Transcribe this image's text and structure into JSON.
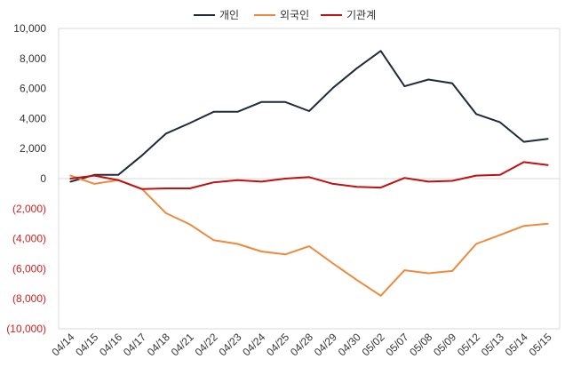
{
  "chart_data": {
    "type": "line",
    "title": "",
    "xlabel": "",
    "ylabel": "",
    "ylim": [
      -10000,
      10000
    ],
    "y_ticks": [
      {
        "value": 10000,
        "label": "10,000"
      },
      {
        "value": 8000,
        "label": "8,000"
      },
      {
        "value": 6000,
        "label": "6,000"
      },
      {
        "value": 4000,
        "label": "4,000"
      },
      {
        "value": 2000,
        "label": "2,000"
      },
      {
        "value": 0,
        "label": "0"
      },
      {
        "value": -2000,
        "label": "(2,000)"
      },
      {
        "value": -4000,
        "label": "(4,000)"
      },
      {
        "value": -6000,
        "label": "(6,000)"
      },
      {
        "value": -8000,
        "label": "(8,000)"
      },
      {
        "value": -10000,
        "label": "(10,000)"
      }
    ],
    "categories": [
      "04/14",
      "04/15",
      "04/16",
      "04/17",
      "04/18",
      "04/21",
      "04/22",
      "04/23",
      "04/24",
      "04/25",
      "04/28",
      "04/29",
      "04/30",
      "05/02",
      "05/07",
      "05/08",
      "05/09",
      "05/12",
      "05/13",
      "05/14",
      "05/15"
    ],
    "legend_position": "top-center",
    "series": [
      {
        "name": "개인",
        "color": "#1f2a3a",
        "values": [
          -200,
          250,
          250,
          1550,
          3000,
          3700,
          4450,
          4450,
          5100,
          5100,
          4500,
          6050,
          7350,
          8500,
          6150,
          6600,
          6350,
          4300,
          3750,
          2450,
          2650
        ]
      },
      {
        "name": "외국인",
        "color": "#ef8a3c",
        "values": [
          200,
          -350,
          -100,
          -700,
          -2300,
          -3050,
          -4100,
          -4350,
          -4850,
          -5050,
          -4500,
          -5650,
          -6750,
          -7800,
          -6100,
          -6300,
          -6150,
          -4350,
          -3750,
          -3150,
          -3000
        ]
      },
      {
        "name": "기관계",
        "color": "#c01010",
        "values": [
          0,
          200,
          -100,
          -700,
          -650,
          -650,
          -250,
          -100,
          -200,
          0,
          100,
          -350,
          -550,
          -600,
          50,
          -200,
          -150,
          200,
          250,
          1100,
          900
        ]
      }
    ]
  }
}
